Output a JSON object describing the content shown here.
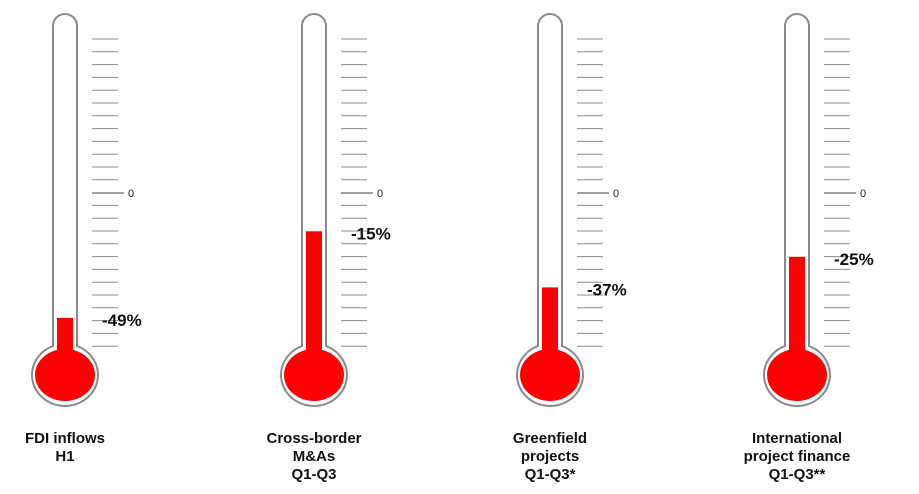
{
  "chart_data": {
    "type": "thermometer",
    "zero_label": "0",
    "unit": "%",
    "colors": {
      "fill": "#ff0000",
      "outline": "#8a8a8a",
      "tube": "#ffffff"
    },
    "series": [
      {
        "label_lines": [
          "FDI inflows",
          "H1"
        ],
        "value": -49,
        "value_label": "-49%"
      },
      {
        "label_lines": [
          "Cross-border",
          "M&As",
          "Q1-Q3"
        ],
        "value": -15,
        "value_label": "-15%"
      },
      {
        "label_lines": [
          "Greenfield",
          "projects",
          "Q1-Q3*"
        ],
        "value": -37,
        "value_label": "-37%"
      },
      {
        "label_lines": [
          "International",
          "project finance",
          "Q1-Q3**"
        ],
        "value": -25,
        "value_label": "-25%"
      }
    ]
  }
}
